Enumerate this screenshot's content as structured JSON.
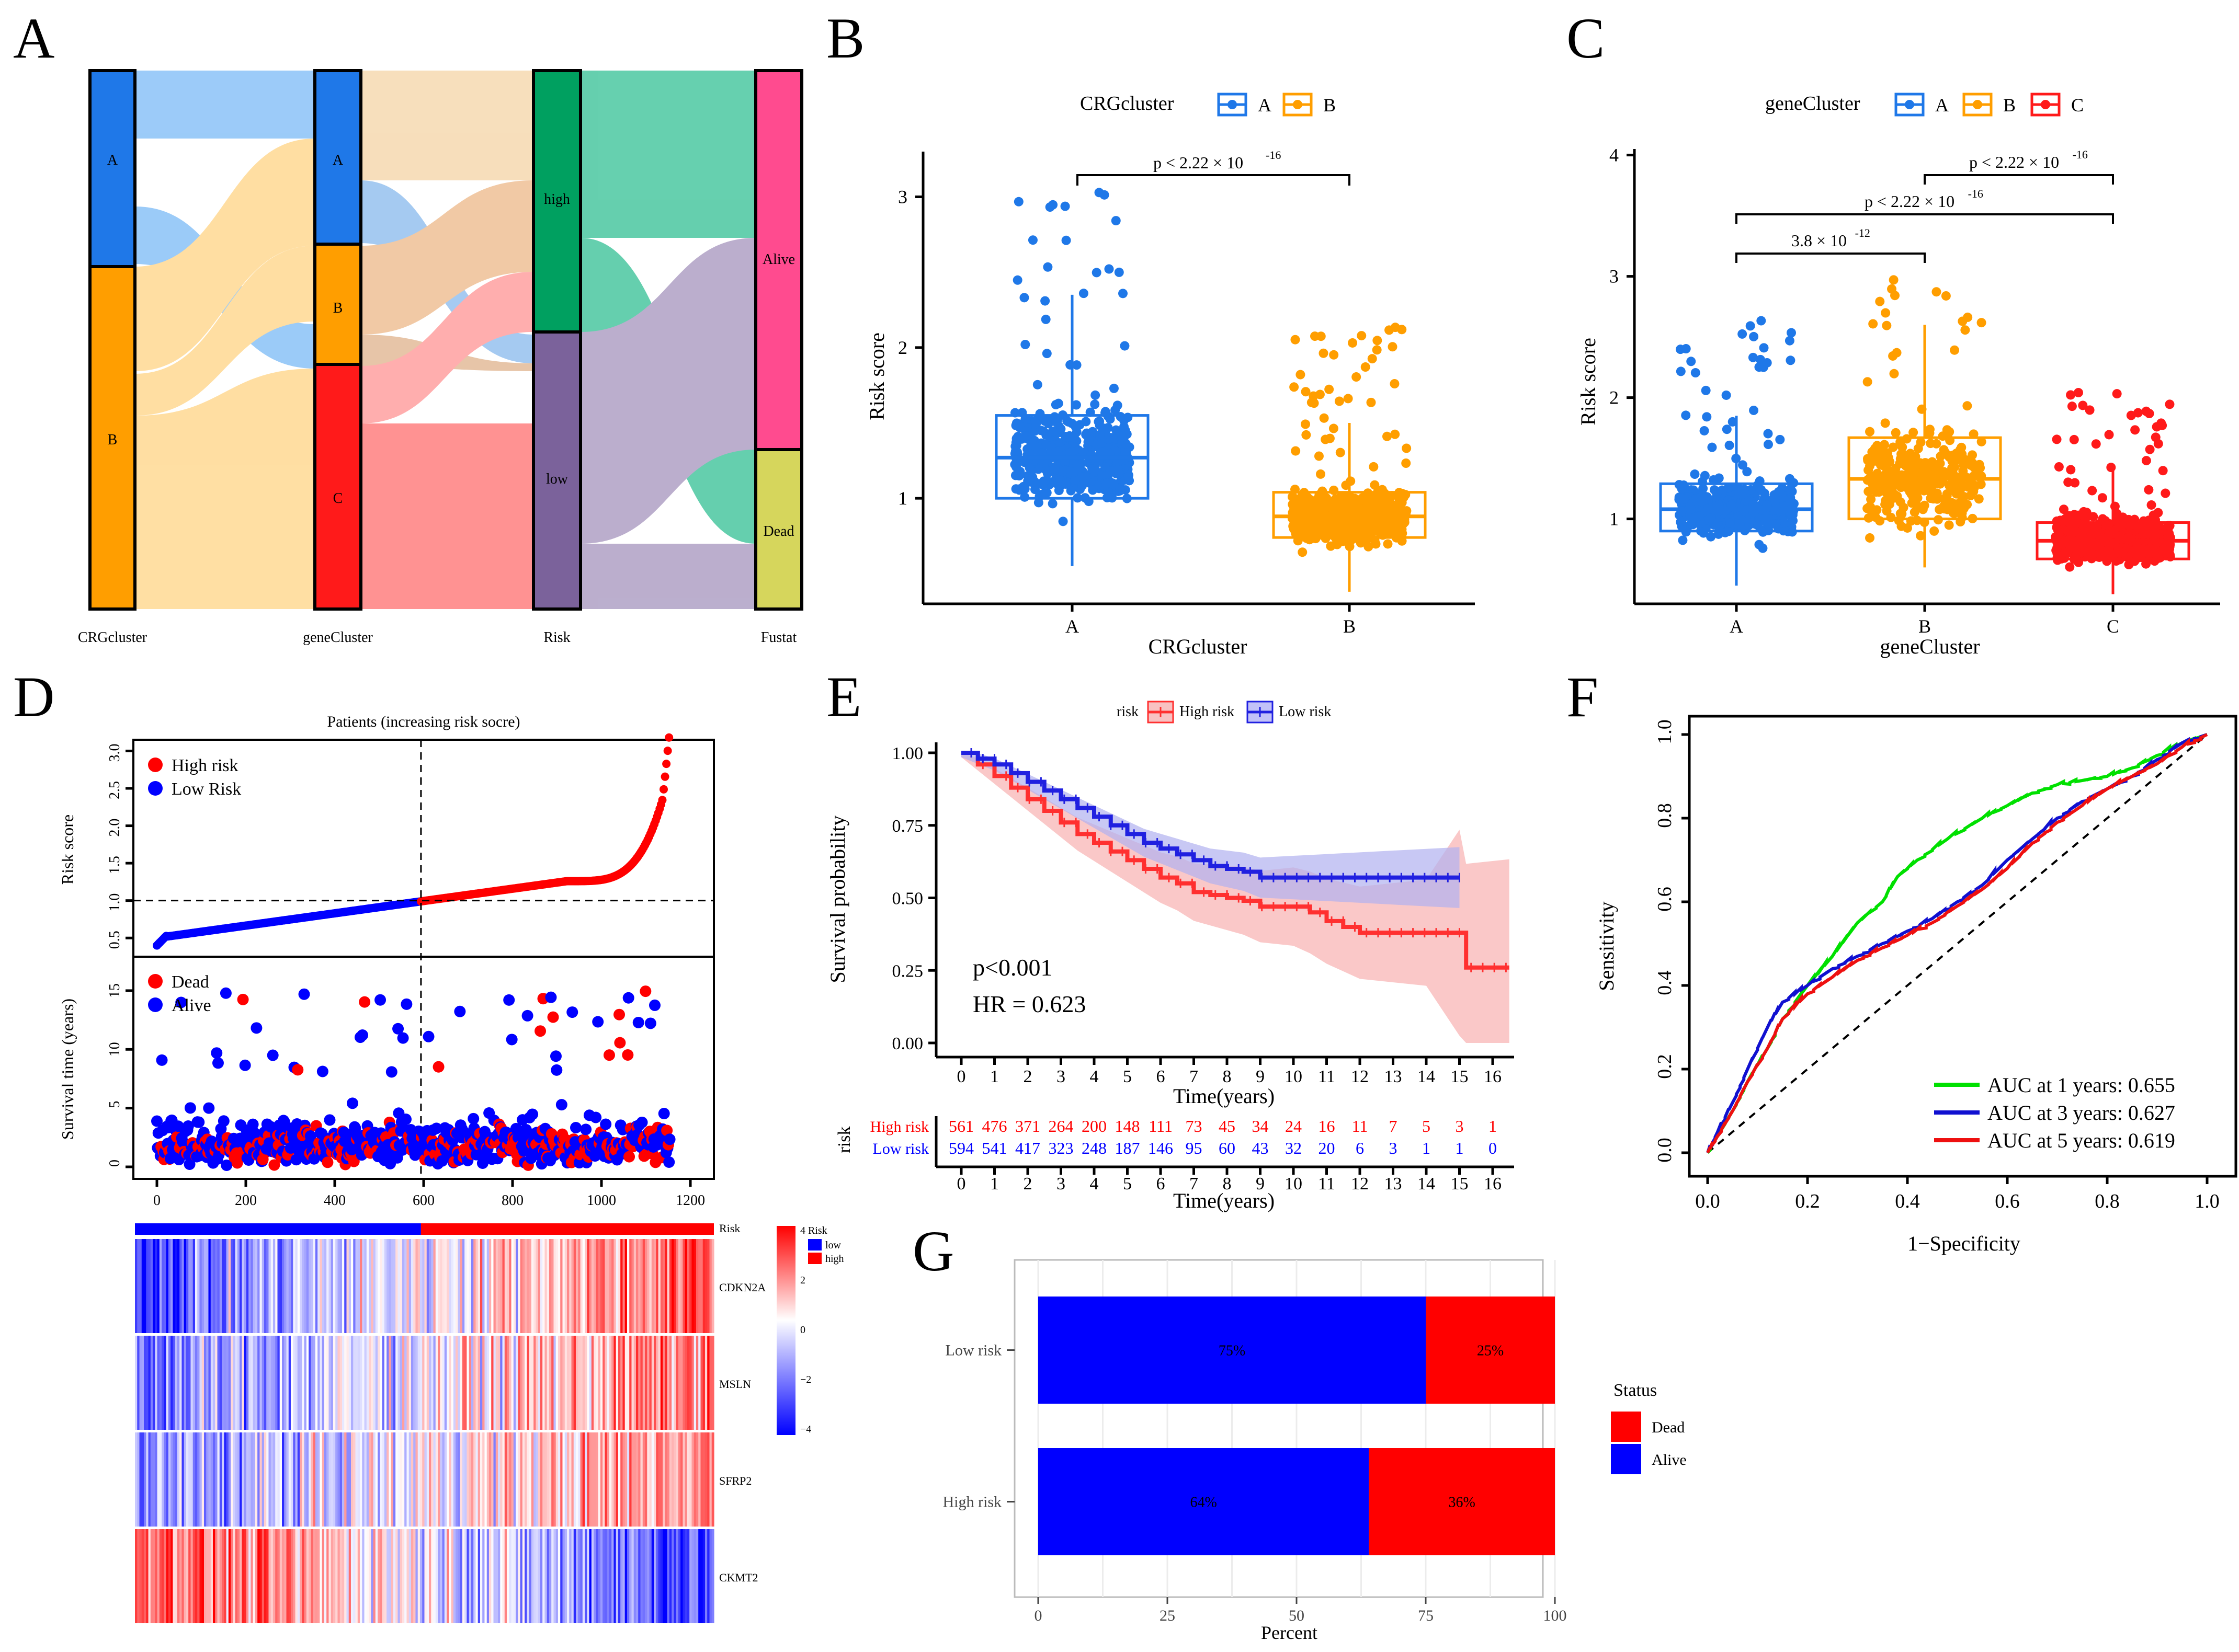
{
  "panels": {
    "A": {
      "letter": "A"
    },
    "B": {
      "letter": "B"
    },
    "C": {
      "letter": "C"
    },
    "D": {
      "letter": "D"
    },
    "E": {
      "letter": "E"
    },
    "F": {
      "letter": "F"
    },
    "G": {
      "letter": "G"
    }
  },
  "colors": {
    "A_blue": "#1f78e8",
    "B_orange": "#ff9e00",
    "C_red": "#ff1a1a",
    "high": "#ff0000",
    "low": "#0000ff",
    "risk_high": "#00a060",
    "risk_low": "#7b629b",
    "alive": "#ff4b8f",
    "dead": "#d6d65c",
    "km_high": "#ff3030",
    "km_low": "#2020e0",
    "roc1": "#00e000",
    "roc3": "#1010d0",
    "roc5": "#ee1010"
  },
  "chart_data": [
    {
      "id": "A",
      "type": "sankey",
      "axes": [
        "CRGcluster",
        "geneCluster",
        "Risk",
        "Fustat"
      ],
      "nodes": {
        "CRGcluster": [
          {
            "label": "A",
            "value": 0.36
          },
          {
            "label": "B",
            "value": 0.64
          }
        ],
        "geneCluster": [
          {
            "label": "A",
            "value": 0.32
          },
          {
            "label": "B",
            "value": 0.22
          },
          {
            "label": "C",
            "value": 0.46
          }
        ],
        "Risk": [
          {
            "label": "high",
            "value": 0.49
          },
          {
            "label": "low",
            "value": 0.51
          }
        ],
        "Fustat": [
          {
            "label": "Alive",
            "value": 0.69
          },
          {
            "label": "Dead",
            "value": 0.31
          }
        ]
      }
    },
    {
      "id": "B",
      "type": "box",
      "title": "CRGcluster",
      "legend": [
        "A",
        "B"
      ],
      "xlabel": "CRGcluster",
      "ylabel": "Risk score",
      "categories": [
        "A",
        "B"
      ],
      "yticks": [
        "1",
        "2",
        "3"
      ],
      "ylim": [
        0.3,
        3.3
      ],
      "boxes": [
        {
          "name": "A",
          "q1": 1.0,
          "median": 1.27,
          "q3": 1.55,
          "low": 0.55,
          "high": 2.35,
          "max": 3.05
        },
        {
          "name": "B",
          "q1": 0.74,
          "median": 0.88,
          "q3": 1.04,
          "low": 0.38,
          "high": 1.5,
          "max": 2.15
        }
      ],
      "comparison": {
        "text": "p < 2.22 × 10",
        "exp": "-16",
        "pair": [
          "A",
          "B"
        ]
      }
    },
    {
      "id": "C",
      "type": "box",
      "title": "geneCluster",
      "legend": [
        "A",
        "B",
        "C"
      ],
      "xlabel": "geneCluster",
      "ylabel": "Risk score",
      "categories": [
        "A",
        "B",
        "C"
      ],
      "yticks": [
        "1",
        "2",
        "3",
        "4"
      ],
      "ylim": [
        0.3,
        4.05
      ],
      "boxes": [
        {
          "name": "A",
          "q1": 0.9,
          "median": 1.08,
          "q3": 1.29,
          "low": 0.45,
          "high": 1.85,
          "max": 2.65
        },
        {
          "name": "B",
          "q1": 1.0,
          "median": 1.33,
          "q3": 1.67,
          "low": 0.6,
          "high": 2.6,
          "max": 3.05
        },
        {
          "name": "C",
          "q1": 0.67,
          "median": 0.82,
          "q3": 0.97,
          "low": 0.38,
          "high": 1.4,
          "max": 2.05
        }
      ],
      "comparisons": [
        {
          "text": "p < 2.22 × 10",
          "exp": "-16",
          "pair": [
            "B",
            "C"
          ],
          "level": 3.85
        },
        {
          "text": "p < 2.22 × 10",
          "exp": "-16",
          "pair": [
            "A",
            "C"
          ],
          "level": 3.5
        },
        {
          "text": "3.8 × 10",
          "exp": "-12",
          "pair": [
            "A",
            "B"
          ],
          "level": 3.15
        }
      ]
    },
    {
      "id": "D",
      "type": "risk-plot",
      "title": "Patients (increasing risk socre)",
      "legend_top": [
        "High risk",
        "Low Risk"
      ],
      "legend_mid": [
        "Dead",
        "Alive"
      ],
      "ylabel_top": "Risk score",
      "ylabel_mid": "Survival time (years)",
      "xticks": [
        "0",
        "200",
        "400",
        "600",
        "800",
        "1000",
        "1200"
      ],
      "yticks_top": [
        "0.5",
        "1.0",
        "1.5",
        "2.0",
        "2.5",
        "3.0"
      ],
      "yticks_mid": [
        "0",
        "5",
        "10",
        "15"
      ],
      "cutoff_index": 594,
      "n": 1155,
      "cutoff_score": 1.0,
      "heatmap": {
        "genes": [
          "CDKN2A",
          "MSLN",
          "SFRP2",
          "CKMT2"
        ],
        "risk_label": "Risk",
        "legend_title": "Risk",
        "legend_items": [
          "low",
          "high"
        ],
        "scale": [
          "4",
          "2",
          "0",
          "−2",
          "−4"
        ]
      }
    },
    {
      "id": "E",
      "type": "line",
      "legend_title": "risk",
      "legend": [
        "High risk",
        "Low risk"
      ],
      "xlabel": "Time(years)",
      "ylabel": "Survival probability",
      "xticks": [
        "0",
        "1",
        "2",
        "3",
        "4",
        "5",
        "6",
        "7",
        "8",
        "9",
        "10",
        "11",
        "12",
        "13",
        "14",
        "15",
        "16"
      ],
      "yticks": [
        "0.00",
        "0.25",
        "0.50",
        "0.75",
        "1.00"
      ],
      "pvalue": "p<0.001",
      "hr": "HR = 0.623",
      "series": [
        {
          "name": "High risk",
          "x": [
            0,
            0.5,
            1,
            1.5,
            2,
            2.5,
            3,
            3.5,
            4,
            4.5,
            5,
            5.5,
            6,
            6.5,
            7,
            7.5,
            8,
            8.5,
            9,
            10,
            10.5,
            11,
            11.5,
            12,
            13,
            14,
            15,
            15.2,
            16.5
          ],
          "y": [
            1.0,
            0.96,
            0.92,
            0.88,
            0.84,
            0.8,
            0.76,
            0.72,
            0.69,
            0.66,
            0.63,
            0.6,
            0.57,
            0.55,
            0.52,
            0.51,
            0.5,
            0.49,
            0.47,
            0.47,
            0.45,
            0.42,
            0.4,
            0.38,
            0.38,
            0.38,
            0.38,
            0.26,
            0.26
          ]
        },
        {
          "name": "Low risk",
          "x": [
            0,
            0.5,
            1,
            1.5,
            2,
            2.5,
            3,
            3.5,
            4,
            4.5,
            5,
            5.5,
            6,
            6.5,
            7,
            7.5,
            8,
            8.5,
            9,
            10,
            11,
            12,
            13,
            14,
            15
          ],
          "y": [
            1.0,
            0.98,
            0.96,
            0.93,
            0.9,
            0.87,
            0.84,
            0.81,
            0.78,
            0.75,
            0.72,
            0.69,
            0.67,
            0.65,
            0.63,
            0.61,
            0.6,
            0.59,
            0.57,
            0.57,
            0.57,
            0.57,
            0.57,
            0.57,
            0.57
          ]
        }
      ],
      "risk_table": {
        "title": "risk",
        "rows": [
          {
            "name": "High risk",
            "values": [
              "561",
              "476",
              "371",
              "264",
              "200",
              "148",
              "111",
              "73",
              "45",
              "34",
              "24",
              "16",
              "11",
              "7",
              "5",
              "3",
              "1"
            ]
          },
          {
            "name": "Low risk",
            "values": [
              "594",
              "541",
              "417",
              "323",
              "248",
              "187",
              "146",
              "95",
              "60",
              "43",
              "32",
              "20",
              "6",
              "3",
              "1",
              "1",
              "0"
            ]
          }
        ]
      }
    },
    {
      "id": "F",
      "type": "roc",
      "xlabel": "1−Specificity",
      "ylabel": "Sensitivity",
      "xticks": [
        "0.0",
        "0.2",
        "0.4",
        "0.6",
        "0.8",
        "1.0"
      ],
      "yticks": [
        "0.0",
        "0.2",
        "0.4",
        "0.6",
        "0.8",
        "1.0"
      ],
      "series": [
        {
          "name": "AUC at 1 years: 0.655",
          "x": [
            0,
            0.02,
            0.05,
            0.08,
            0.12,
            0.15,
            0.2,
            0.25,
            0.3,
            0.35,
            0.38,
            0.42,
            0.48,
            0.55,
            0.6,
            0.65,
            0.7,
            0.75,
            0.8,
            0.85,
            0.9,
            0.95,
            1.0
          ],
          "y": [
            0,
            0.04,
            0.1,
            0.17,
            0.25,
            0.32,
            0.4,
            0.47,
            0.55,
            0.6,
            0.66,
            0.7,
            0.75,
            0.8,
            0.83,
            0.86,
            0.88,
            0.89,
            0.9,
            0.92,
            0.95,
            0.98,
            1.0
          ]
        },
        {
          "name": "AUC at 3 years: 0.627",
          "x": [
            0,
            0.02,
            0.05,
            0.08,
            0.12,
            0.15,
            0.2,
            0.25,
            0.3,
            0.35,
            0.4,
            0.45,
            0.5,
            0.55,
            0.6,
            0.65,
            0.7,
            0.75,
            0.8,
            0.85,
            0.9,
            0.95,
            1.0
          ],
          "y": [
            0,
            0.05,
            0.12,
            0.2,
            0.3,
            0.36,
            0.4,
            0.44,
            0.47,
            0.5,
            0.53,
            0.56,
            0.6,
            0.64,
            0.7,
            0.75,
            0.8,
            0.84,
            0.87,
            0.9,
            0.94,
            0.98,
            1.0
          ]
        },
        {
          "name": "AUC at 5 years: 0.619",
          "x": [
            0,
            0.02,
            0.05,
            0.08,
            0.12,
            0.15,
            0.2,
            0.25,
            0.3,
            0.35,
            0.4,
            0.45,
            0.5,
            0.55,
            0.6,
            0.65,
            0.7,
            0.75,
            0.8,
            0.85,
            0.9,
            0.95,
            1.0
          ],
          "y": [
            0,
            0.04,
            0.1,
            0.17,
            0.25,
            0.32,
            0.38,
            0.42,
            0.46,
            0.49,
            0.52,
            0.55,
            0.59,
            0.63,
            0.68,
            0.74,
            0.79,
            0.83,
            0.87,
            0.9,
            0.93,
            0.97,
            1.0
          ]
        }
      ]
    },
    {
      "id": "G",
      "type": "bar",
      "xlabel": "Percent",
      "legend_title": "Status",
      "legend": [
        "Dead",
        "Alive"
      ],
      "categories": [
        "Low risk",
        "High risk"
      ],
      "xticks": [
        "0",
        "25",
        "50",
        "75",
        "100"
      ],
      "series": [
        {
          "name": "Alive",
          "values": [
            75,
            64
          ],
          "labels": [
            "75%",
            "64%"
          ]
        },
        {
          "name": "Dead",
          "values": [
            25,
            36
          ],
          "labels": [
            "25%",
            "36%"
          ]
        }
      ]
    }
  ]
}
